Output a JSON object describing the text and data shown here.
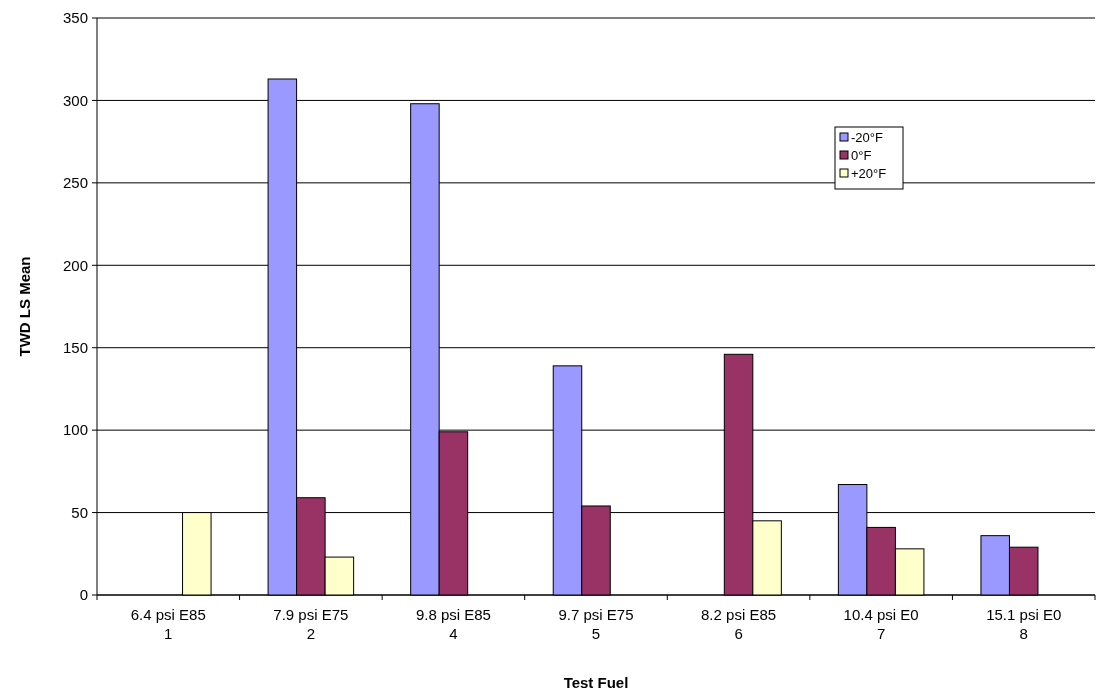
{
  "chart_data": {
    "type": "bar",
    "xlabel": "Test Fuel",
    "ylabel": "TWD LS Mean",
    "categories": [
      "6.4 psi E85\n1",
      "7.9 psi E75\n2",
      "9.8 psi E85\n4",
      "9.7 psi E75\n5",
      "8.2 psi E85\n6",
      "10.4 psi E0\n7",
      "15.1 psi E0\n8"
    ],
    "series": [
      {
        "name": "-20°F",
        "color": "#9999ff",
        "values": [
          null,
          313,
          298,
          139,
          null,
          67,
          36
        ]
      },
      {
        "name": "0°F",
        "color": "#993366",
        "values": [
          null,
          59,
          99,
          54,
          146,
          41,
          29
        ]
      },
      {
        "name": "+20°F",
        "color": "#ffffcc",
        "values": [
          50,
          23,
          null,
          null,
          45,
          28,
          null
        ]
      }
    ],
    "ylim": [
      0,
      350
    ],
    "yticks": [
      0,
      50,
      100,
      150,
      200,
      250,
      300,
      350
    ],
    "grid": "y",
    "legend": "top right"
  }
}
